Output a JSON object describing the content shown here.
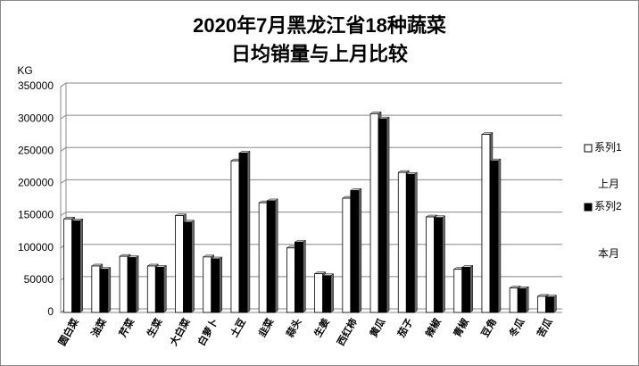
{
  "chart_data": {
    "type": "bar",
    "title": [
      "2020年7月黑龙江省18种蔬菜",
      "日均销量与上月比较"
    ],
    "y_label": "KG",
    "categories": [
      "圆白菜",
      "油菜",
      "芹菜",
      "生菜",
      "大白菜",
      "白萝卜",
      "土豆",
      "韭菜",
      "蒜头",
      "生姜",
      "西红柿",
      "黄瓜",
      "茄子",
      "辣椒",
      "青椒",
      "豆角",
      "冬瓜",
      "苦瓜"
    ],
    "series": [
      {
        "name": "系列1",
        "color": "#ffffff",
        "values": [
          145000,
          72000,
          87000,
          72000,
          150000,
          86000,
          235000,
          170000,
          100000,
          60000,
          177000,
          308000,
          217000,
          148000,
          67000,
          276000,
          38000,
          25000
        ]
      },
      {
        "name": "系列2",
        "color": "#000000",
        "values": [
          142000,
          67000,
          85000,
          70000,
          140000,
          83000,
          247000,
          173000,
          109000,
          57000,
          189000,
          300000,
          214000,
          147000,
          70000,
          235000,
          37000,
          24000
        ]
      }
    ],
    "annotations": [
      "上月",
      "本月"
    ],
    "ylim": [
      0,
      350000
    ],
    "yticks": [
      0,
      50000,
      100000,
      150000,
      200000,
      250000,
      300000,
      350000
    ],
    "grid": true
  }
}
